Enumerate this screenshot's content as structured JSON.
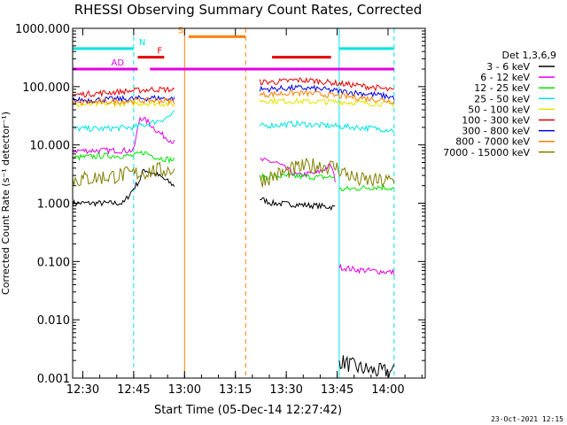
{
  "chart_data": {
    "type": "line",
    "title": "RHESSI Observing Summary Count Rates, Corrected",
    "xlabel": "Start Time (05-Dec-14 12:27:42)",
    "ylabel": "Corrected Count Rate (s⁻¹ detector⁻¹)",
    "yscale": "log",
    "ylim": [
      0.001,
      1000
    ],
    "xlim": [
      12.45,
      14.183
    ],
    "x_ticks": [
      {
        "v": 12.5,
        "label": "12:30"
      },
      {
        "v": 12.75,
        "label": "12:45"
      },
      {
        "v": 13.0,
        "label": "13:00"
      },
      {
        "v": 13.25,
        "label": "13:15"
      },
      {
        "v": 13.5,
        "label": "13:30"
      },
      {
        "v": 13.75,
        "label": "13:45"
      },
      {
        "v": 14.0,
        "label": "14:00"
      }
    ],
    "y_ticks": [
      {
        "v": 1000,
        "label": "1000.000"
      },
      {
        "v": 100,
        "label": "100.000"
      },
      {
        "v": 10,
        "label": "10.000"
      },
      {
        "v": 1,
        "label": "1.000"
      },
      {
        "v": 0.1,
        "label": "0.100"
      },
      {
        "v": 0.01,
        "label": "0.010"
      },
      {
        "v": 0.001,
        "label": "0.001"
      }
    ],
    "legend_header": "Det 1,3,6,9",
    "legend_position": "right",
    "series": [
      {
        "name": "3 - 6 keV",
        "color": "#000000",
        "segments": [
          {
            "x": [
              12.45,
              12.58,
              12.7,
              12.75,
              12.78,
              12.8,
              12.87,
              12.95
            ],
            "y": [
              1.0,
              1.0,
              1.0,
              1.8,
              2.5,
              3.8,
              3.0,
              2.0
            ]
          },
          {
            "x": [
              13.37,
              13.43,
              13.55,
              13.65,
              13.74
            ],
            "y": [
              1.2,
              1.0,
              0.95,
              0.9,
              0.85
            ]
          },
          {
            "x": [
              13.76,
              13.85,
              13.95,
              14.03
            ],
            "y": [
              0.002,
              0.0015,
              0.0013,
              0.0013
            ]
          }
        ]
      },
      {
        "name": "6 - 12 keV",
        "color": "#e400e4",
        "segments": [
          {
            "x": [
              12.45,
              12.6,
              12.75,
              12.78,
              12.82,
              12.86,
              12.9,
              12.95
            ],
            "y": [
              8,
              8,
              8,
              30,
              25,
              18,
              14,
              11
            ]
          },
          {
            "x": [
              13.37,
              13.45,
              13.55,
              13.65,
              13.72,
              13.74
            ],
            "y": [
              5.5,
              5.0,
              3.0,
              3.3,
              4.5,
              2.5
            ]
          },
          {
            "x": [
              13.76,
              13.85,
              13.95,
              14.03
            ],
            "y": [
              0.08,
              0.072,
              0.068,
              0.065
            ]
          }
        ]
      },
      {
        "name": "12 - 25 keV",
        "color": "#00e400",
        "segments": [
          {
            "x": [
              12.45,
              12.6,
              12.75,
              12.8,
              12.87,
              12.95
            ],
            "y": [
              6,
              6.5,
              6.5,
              7.5,
              6.0,
              5.5
            ]
          },
          {
            "x": [
              13.37,
              13.45,
              13.55,
              13.65,
              13.74
            ],
            "y": [
              2.8,
              2.9,
              2.9,
              2.8,
              2.8
            ]
          },
          {
            "x": [
              13.76,
              13.85,
              13.95,
              14.03
            ],
            "y": [
              1.7,
              1.8,
              1.9,
              1.8
            ]
          }
        ]
      },
      {
        "name": "25 - 50 keV",
        "color": "#00e4e4",
        "segments": [
          {
            "x": [
              12.45,
              12.6,
              12.75,
              12.82,
              12.9,
              12.95
            ],
            "y": [
              19,
              19,
              20,
              23,
              28,
              35
            ]
          },
          {
            "x": [
              13.37,
              13.45,
              13.55,
              13.65,
              13.74,
              13.85,
              13.95,
              14.03
            ],
            "y": [
              21,
              22,
              23,
              22,
              21,
              20,
              19,
              18
            ]
          }
        ]
      },
      {
        "name": "50 - 100 keV",
        "color": "#e4e400",
        "segments": [
          {
            "x": [
              12.45,
              12.6,
              12.75,
              12.85,
              12.95
            ],
            "y": [
              48,
              50,
              52,
              52,
              50
            ]
          },
          {
            "x": [
              13.37,
              13.45,
              13.55,
              13.65,
              13.74,
              13.85,
              13.95,
              14.03
            ],
            "y": [
              58,
              57,
              56,
              55,
              55,
              53,
              51,
              50
            ]
          }
        ]
      },
      {
        "name": "100 - 300 keV",
        "color": "#e40000",
        "segments": [
          {
            "x": [
              12.45,
              12.6,
              12.75,
              12.85,
              12.95
            ],
            "y": [
              72,
              78,
              85,
              90,
              88
            ]
          },
          {
            "x": [
              13.37,
              13.45,
              13.55,
              13.65,
              13.74,
              13.85,
              13.95,
              14.03
            ],
            "y": [
              120,
              120,
              130,
              125,
              115,
              105,
              95,
              85
            ]
          }
        ]
      },
      {
        "name": "300 - 800 keV",
        "color": "#0000e4",
        "segments": [
          {
            "x": [
              12.45,
              12.6,
              12.75,
              12.85,
              12.95
            ],
            "y": [
              58,
              60,
              62,
              64,
              62
            ]
          },
          {
            "x": [
              13.37,
              13.45,
              13.55,
              13.65,
              13.74,
              13.85,
              13.95,
              14.03
            ],
            "y": [
              90,
              92,
              95,
              92,
              85,
              78,
              72,
              65
            ]
          }
        ]
      },
      {
        "name": "800 - 7000 keV",
        "color": "#ff8000",
        "segments": [
          {
            "x": [
              12.45,
              12.6,
              12.75,
              12.85,
              12.95
            ],
            "y": [
              52,
              55,
              57,
              58,
              56
            ]
          },
          {
            "x": [
              13.37,
              13.45,
              13.55,
              13.65,
              13.74,
              13.85,
              13.95,
              14.03
            ],
            "y": [
              72,
              75,
              78,
              75,
              70,
              65,
              60,
              56
            ]
          }
        ]
      },
      {
        "name": "7000 - 15000 keV",
        "color": "#808000",
        "segments": [
          {
            "x": [
              12.45,
              12.6,
              12.75,
              12.85,
              12.95
            ],
            "y": [
              2.5,
              2.8,
              3.2,
              3.6,
              3.8
            ]
          },
          {
            "x": [
              13.37,
              13.45,
              13.55,
              13.65,
              13.74,
              13.85,
              13.95,
              14.03
            ],
            "y": [
              2.5,
              3.0,
              4.0,
              4.5,
              4.2,
              2.5,
              2.4,
              2.4
            ]
          }
        ]
      }
    ],
    "flag_bars": [
      {
        "label": "N",
        "color": "#00e4e4",
        "y": 450,
        "ranges": [
          [
            12.45,
            12.75
          ],
          [
            13.76,
            14.03
          ]
        ]
      },
      {
        "label": "F",
        "color": "#e40000",
        "y": 320,
        "ranges": [
          [
            12.77,
            12.9
          ],
          [
            13.43,
            13.72
          ]
        ]
      },
      {
        "label": "S",
        "color": "#ff8000",
        "y": 720,
        "ranges": [
          [
            13.02,
            13.3
          ]
        ]
      },
      {
        "label": "AD",
        "color": "#e400e4",
        "y": 200,
        "ranges": [
          [
            12.45,
            12.77
          ],
          [
            12.83,
            14.03
          ]
        ]
      }
    ],
    "vertical_lines": [
      {
        "x": 12.45,
        "color": "#00e4e4",
        "style": "solid"
      },
      {
        "x": 12.75,
        "color": "#00e4e4",
        "style": "dashed"
      },
      {
        "x": 13.0,
        "color": "#ff8000",
        "style": "solid"
      },
      {
        "x": 13.3,
        "color": "#ff8000",
        "style": "dashed"
      },
      {
        "x": 13.76,
        "color": "#00e4e4",
        "style": "solid"
      },
      {
        "x": 14.03,
        "color": "#00e4e4",
        "style": "dashed"
      }
    ],
    "timestamp": "23-Oct-2021 12:15"
  }
}
